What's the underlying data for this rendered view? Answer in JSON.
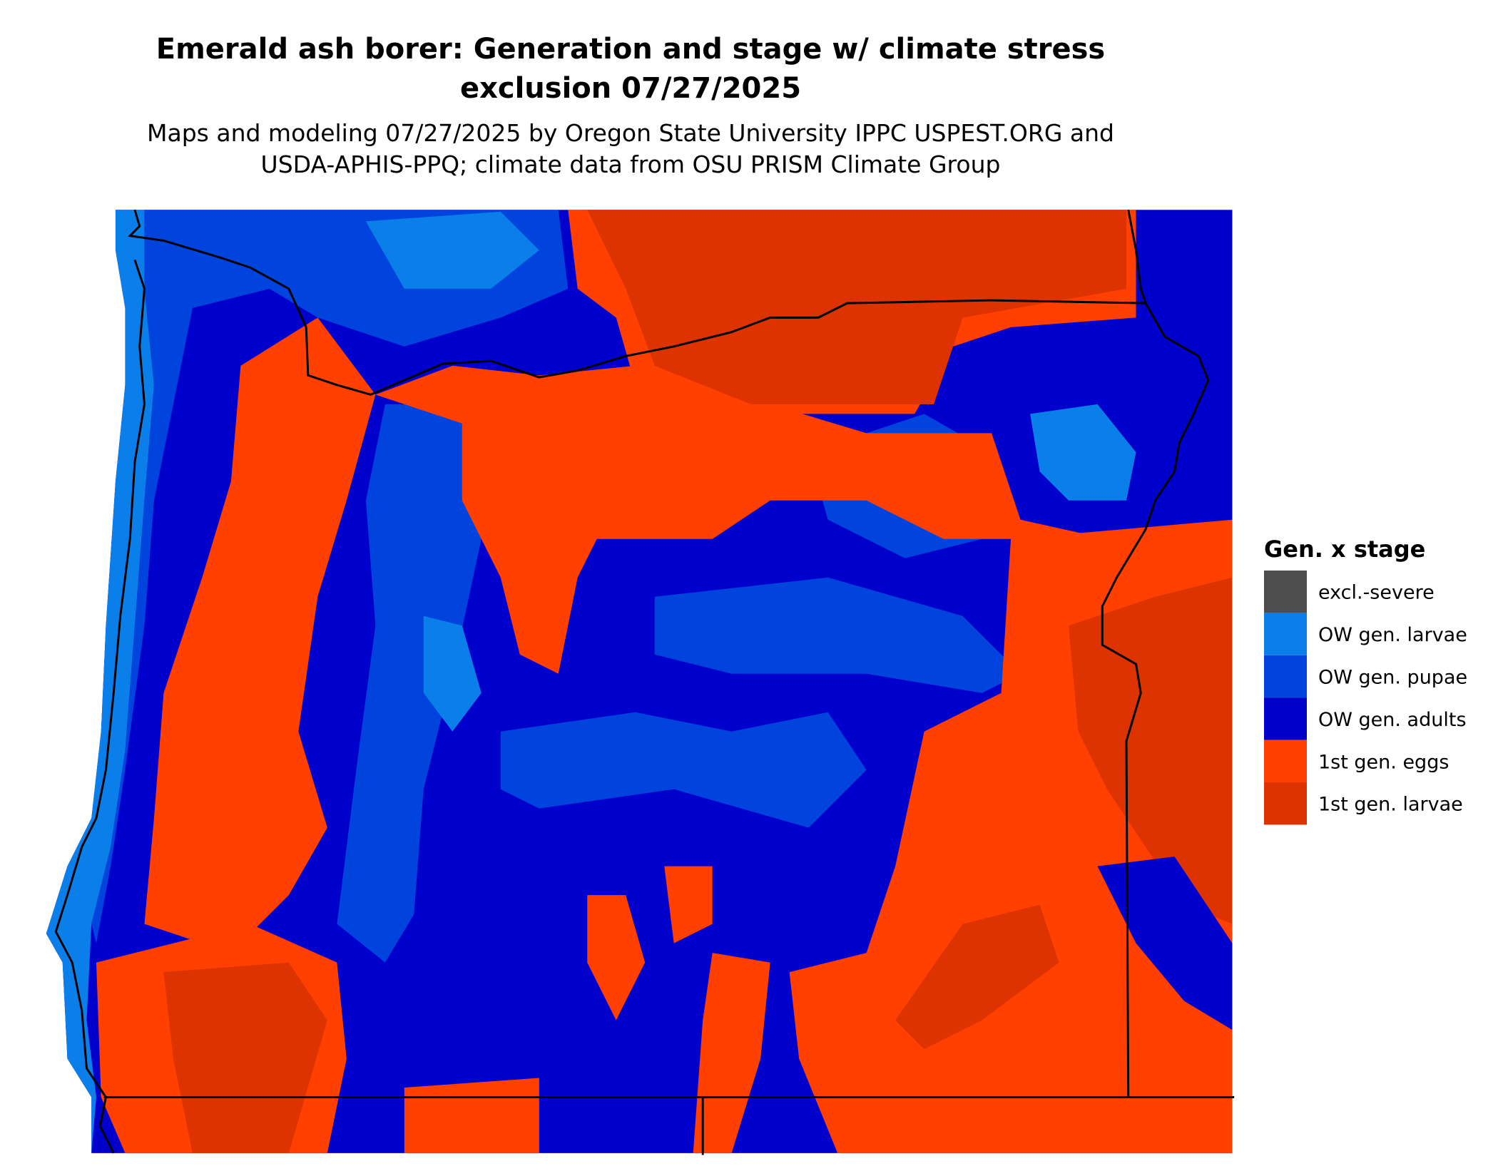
{
  "chart_data": {
    "type": "map",
    "title": [
      "Emerald ash borer: Generation and stage w/ climate stress",
      "exclusion 07/27/2025"
    ],
    "subtitle": [
      "Maps and modeling 07/27/2025 by Oregon State University IPPC USPEST.ORG and",
      "USDA-APHIS-PPQ; climate data from OSU PRISM Climate Group"
    ],
    "legend": {
      "title": "Gen. x stage",
      "items": [
        {
          "name": "excl.-severe",
          "color": "#4d4d4d"
        },
        {
          "name": "OW gen. larvae",
          "color": "#0a7fea"
        },
        {
          "name": "OW gen. pupae",
          "color": "#0044dd"
        },
        {
          "name": "OW gen. adults",
          "color": "#0000cc"
        },
        {
          "name": "1st gen. eggs",
          "color": "#ff4000"
        },
        {
          "name": "1st gen. larvae",
          "color": "#dd3300"
        }
      ]
    }
  }
}
